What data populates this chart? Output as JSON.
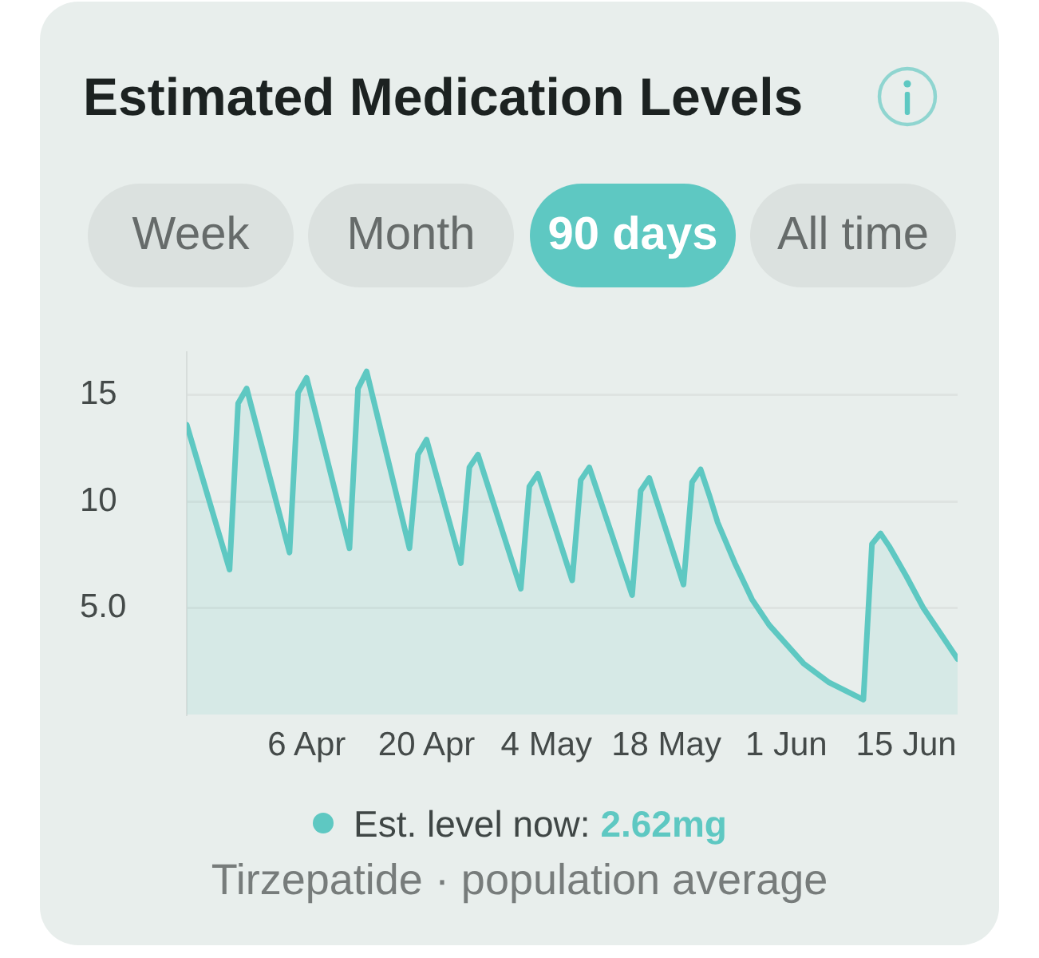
{
  "chart_data": {
    "type": "area",
    "title": "Estimated Medication Levels",
    "annotations": [
      "Week",
      "Month",
      "90 days",
      "All time",
      "Est. level now: 2.62mg",
      "Tirzepatide · population average"
    ],
    "x": [
      "--03-23",
      "--03-28",
      "--03-29",
      "--03-30",
      "--04-04",
      "--04-05",
      "--04-06",
      "--04-11",
      "--04-12",
      "--04-13",
      "--04-18",
      "--04-19",
      "--04-20",
      "--04-24",
      "--04-25",
      "--04-26",
      "--05-01",
      "--05-02",
      "--05-03",
      "--05-07",
      "--05-08",
      "--05-09",
      "--05-14",
      "--05-15",
      "--05-16",
      "--05-20",
      "--05-21",
      "--05-22",
      "--05-23",
      "--05-24",
      "--05-26",
      "--05-28",
      "--05-30",
      "--06-01",
      "--06-03",
      "--06-06",
      "--06-08",
      "--06-10",
      "--06-11",
      "--06-12",
      "--06-13",
      "--06-15",
      "--06-17",
      "--06-19",
      "--06-21"
    ],
    "values": [
      13.6,
      6.8,
      14.6,
      15.3,
      7.6,
      15.1,
      15.8,
      7.8,
      15.3,
      16.1,
      7.8,
      12.2,
      12.9,
      7.1,
      11.6,
      12.2,
      5.9,
      10.7,
      11.3,
      6.3,
      11.0,
      11.6,
      5.6,
      10.5,
      11.1,
      6.1,
      10.9,
      11.5,
      10.3,
      9.0,
      7.1,
      5.4,
      4.2,
      3.3,
      2.4,
      1.5,
      1.1,
      0.7,
      8.0,
      8.5,
      7.9,
      6.5,
      5.0,
      3.8,
      2.6
    ],
    "color": "#5ec8c2",
    "xlim": [
      "--03-23",
      "--06-21"
    ],
    "xticks": [
      {
        "value": "--04-06",
        "label": "6 Apr"
      },
      {
        "value": "--04-20",
        "label": "20 Apr"
      },
      {
        "value": "--05-04",
        "label": "4 May"
      },
      {
        "value": "--05-18",
        "label": "18 May"
      },
      {
        "value": "--06-01",
        "label": "1 Jun"
      },
      {
        "value": "--06-15",
        "label": "15 Jun"
      }
    ],
    "ylim": [
      0,
      17
    ],
    "yticks": [
      {
        "value": 5,
        "label": "5.0"
      },
      10,
      15
    ],
    "grid": "y"
  }
}
